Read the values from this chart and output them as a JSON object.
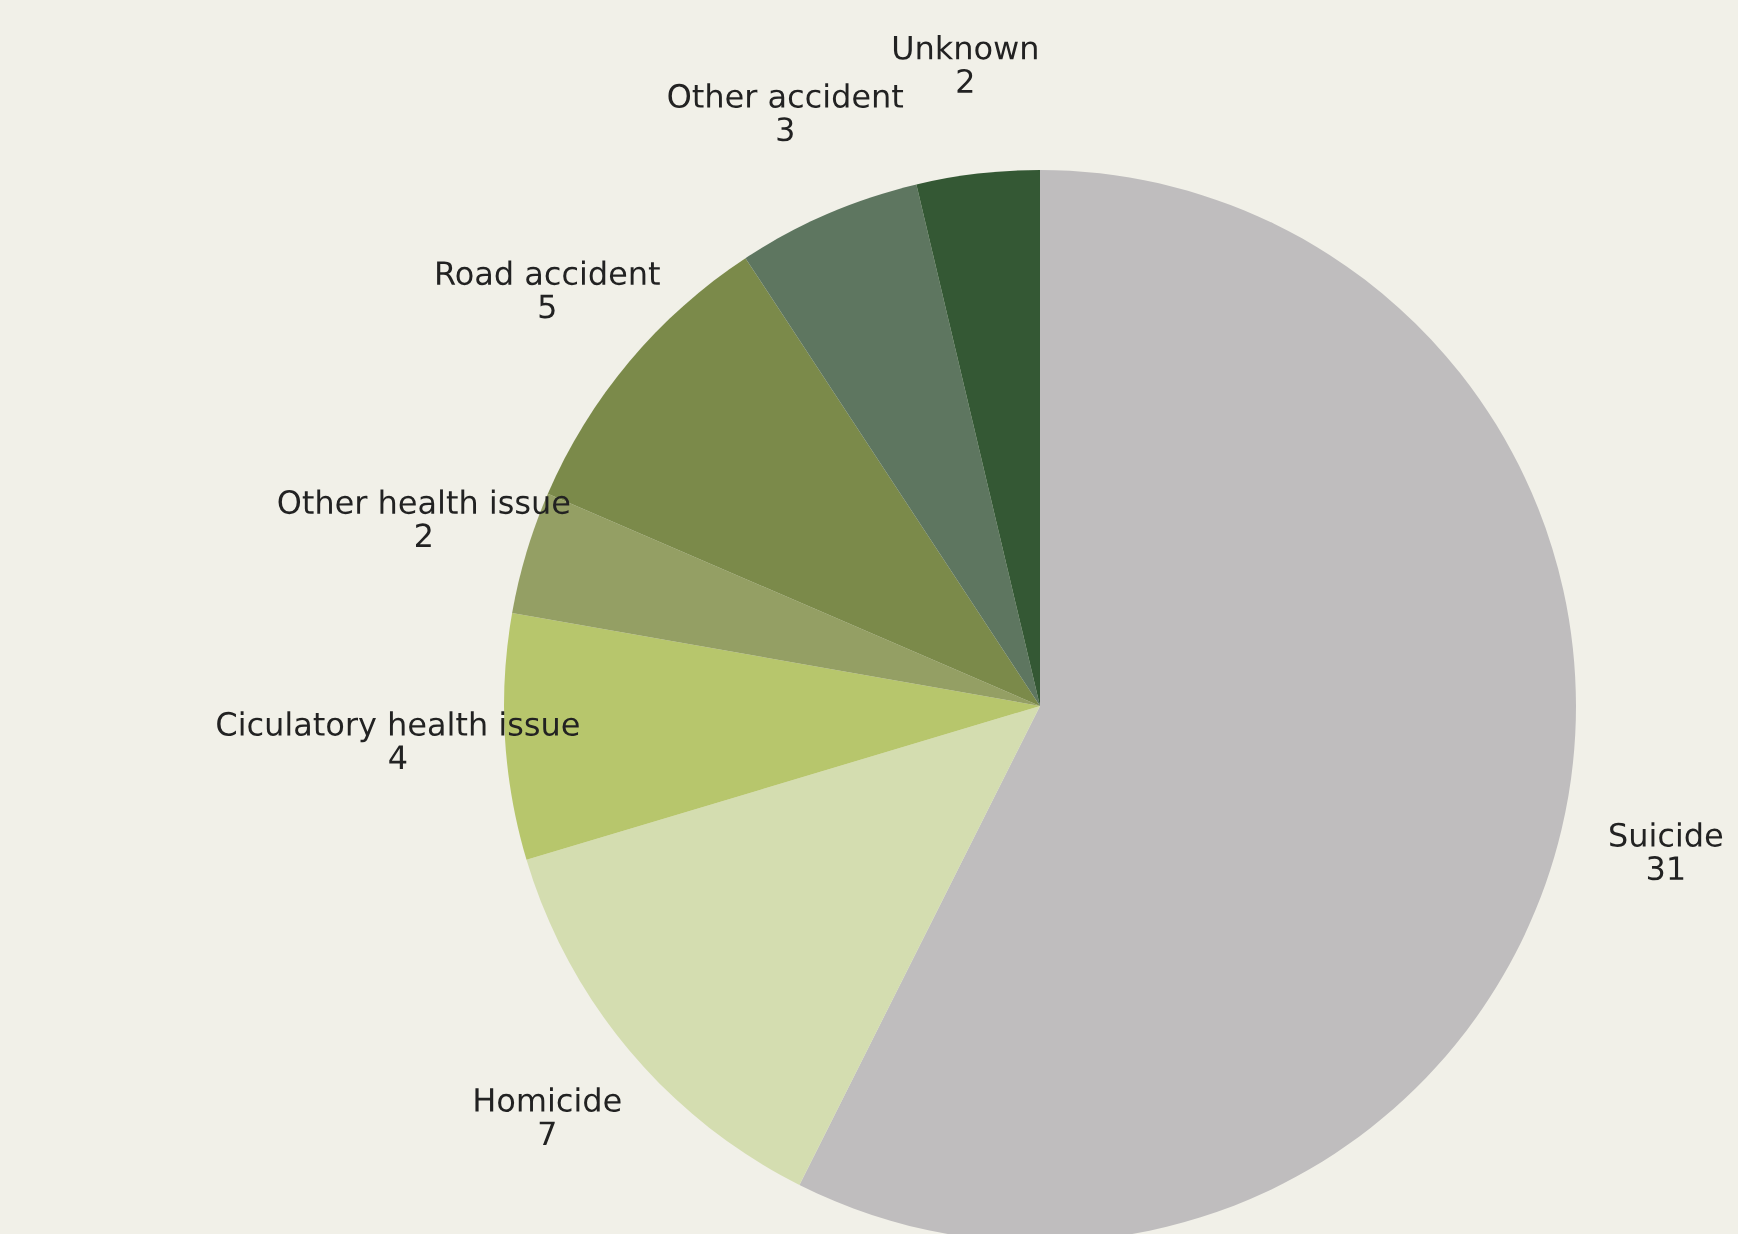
{
  "chart_data": {
    "type": "pie",
    "categories": [
      "Suicide",
      "Homicide",
      "Ciculatory health issue",
      "Other health issue",
      "Road accident",
      "Other accident",
      "Unknown"
    ],
    "values": [
      31,
      7,
      4,
      2,
      5,
      3,
      2
    ],
    "colors": [
      "#bfbdbe",
      "#d4ddb0",
      "#b7c66c",
      "#949f64",
      "#7b8a4a",
      "#5e7660",
      "#345834"
    ],
    "data_labels": true,
    "legend": false
  }
}
